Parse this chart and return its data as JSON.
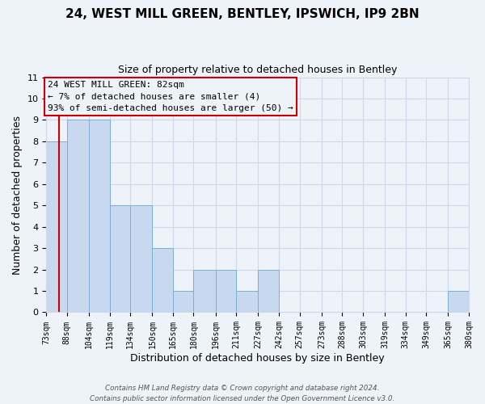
{
  "title": "24, WEST MILL GREEN, BENTLEY, IPSWICH, IP9 2BN",
  "subtitle": "Size of property relative to detached houses in Bentley",
  "xlabel": "Distribution of detached houses by size in Bentley",
  "ylabel": "Number of detached properties",
  "bin_labels": [
    "73sqm",
    "88sqm",
    "104sqm",
    "119sqm",
    "134sqm",
    "150sqm",
    "165sqm",
    "180sqm",
    "196sqm",
    "211sqm",
    "227sqm",
    "242sqm",
    "257sqm",
    "273sqm",
    "288sqm",
    "303sqm",
    "319sqm",
    "334sqm",
    "349sqm",
    "365sqm",
    "380sqm"
  ],
  "bin_edges": [
    73,
    88,
    104,
    119,
    134,
    150,
    165,
    180,
    196,
    211,
    227,
    242,
    257,
    273,
    288,
    303,
    319,
    334,
    349,
    365,
    380
  ],
  "bar_heights": [
    8,
    9,
    9,
    5,
    5,
    3,
    1,
    2,
    2,
    1,
    2,
    0,
    0,
    0,
    0,
    0,
    0,
    0,
    0,
    1
  ],
  "bar_color": "#c8d8ee",
  "bar_edge_color": "#7bafd4",
  "vline_x": 82,
  "vline_color": "#cc0000",
  "annotation_line1": "24 WEST MILL GREEN: 82sqm",
  "annotation_line2": "← 7% of detached houses are smaller (4)",
  "annotation_line3": "93% of semi-detached houses are larger (50) →",
  "annotation_box_color": "#cc0000",
  "ylim": [
    0,
    11
  ],
  "yticks": [
    0,
    1,
    2,
    3,
    4,
    5,
    6,
    7,
    8,
    9,
    10,
    11
  ],
  "grid_color": "#cdd8ea",
  "background_color": "#eef2f9",
  "footer_line1": "Contains HM Land Registry data © Crown copyright and database right 2024.",
  "footer_line2": "Contains public sector information licensed under the Open Government Licence v3.0."
}
